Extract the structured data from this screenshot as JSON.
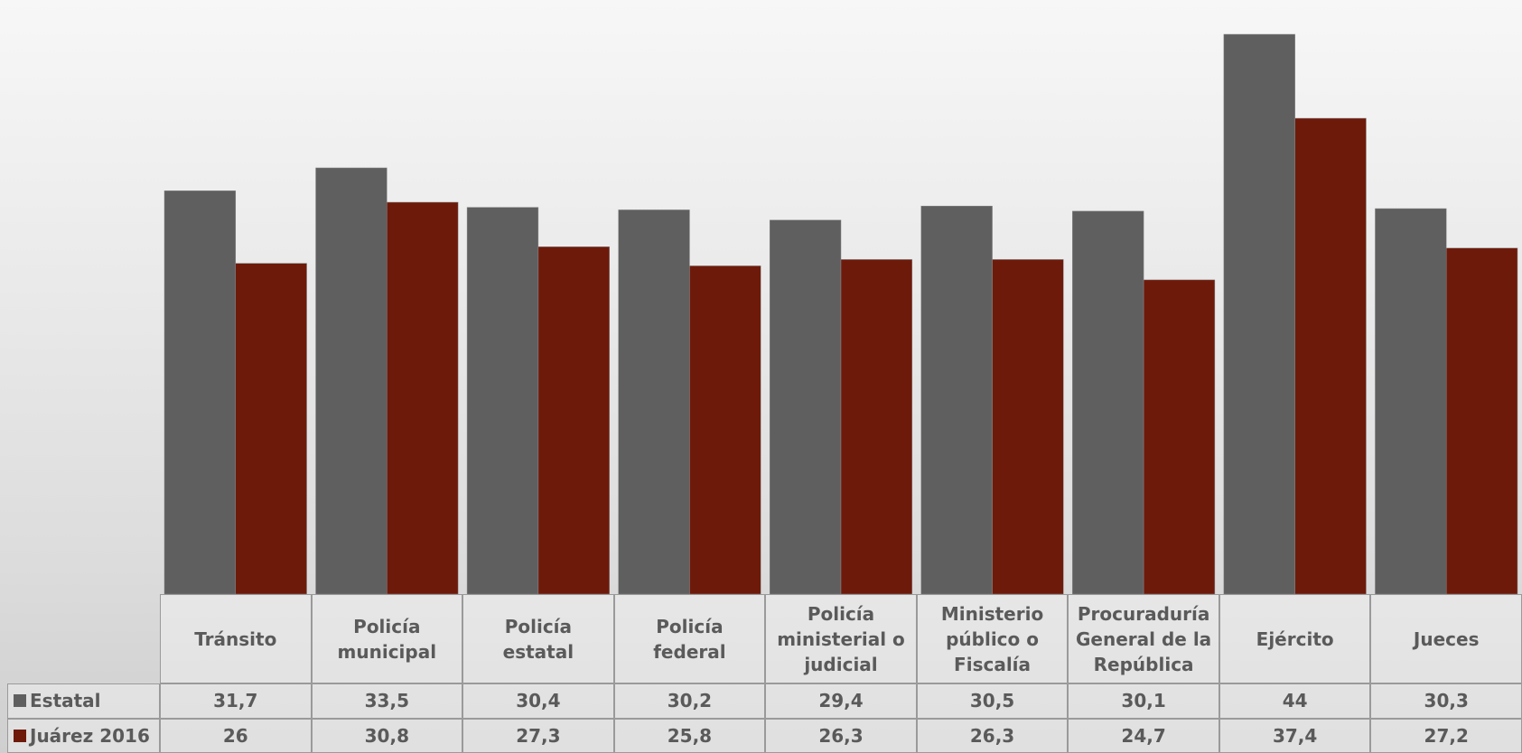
{
  "chart_data": {
    "type": "bar",
    "categories": [
      "Tránsito",
      "Policía municipal",
      "Policía estatal",
      "Policía federal",
      "Policía ministerial o judicial",
      "Ministerio público o Fiscalía",
      "Procuraduría General de la República",
      "Ejército",
      "Jueces"
    ],
    "series": [
      {
        "name": "Estatal",
        "color": "#5f5f5f",
        "values": [
          31.7,
          33.5,
          30.4,
          30.2,
          29.4,
          30.5,
          30.1,
          44,
          30.3
        ],
        "value_labels": [
          "31,7",
          "33,5",
          "30,4",
          "30,2",
          "29,4",
          "30,5",
          "30,1",
          "44",
          "30,3"
        ]
      },
      {
        "name": "Juárez 2016",
        "color": "#6e1a0a",
        "values": [
          26,
          30.8,
          27.3,
          25.8,
          26.3,
          26.3,
          24.7,
          37.4,
          27.2
        ],
        "value_labels": [
          "26",
          "30,8",
          "27,3",
          "25,8",
          "26,3",
          "26,3",
          "24,7",
          "37,4",
          "27,2"
        ]
      }
    ]
  }
}
